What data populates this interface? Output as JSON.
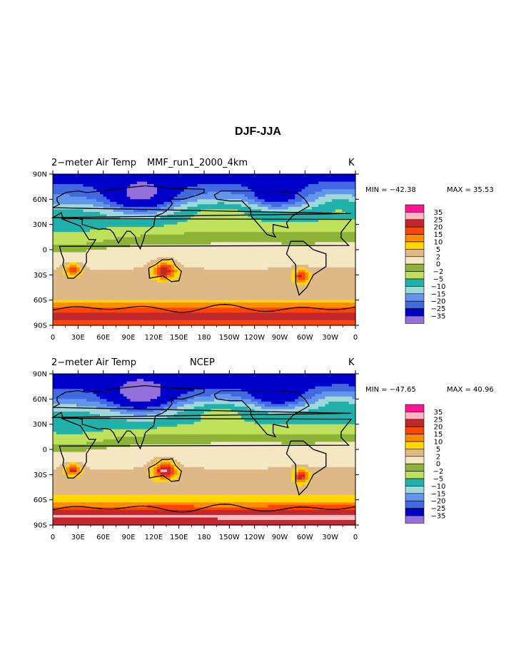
{
  "figure": {
    "title": "DJF-JJA"
  },
  "colorbar_levels": [
    35,
    25,
    20,
    15,
    10,
    5,
    2,
    0,
    -2,
    -5,
    -10,
    -15,
    -20,
    -25,
    -35
  ],
  "colorbar_labels": [
    "35",
    "25",
    "20",
    "15",
    "10",
    "5",
    "2",
    "0",
    "−2",
    "−5",
    "−10",
    "−15",
    "−20",
    "−25",
    "−35"
  ],
  "colorbar_colors": [
    "#FF1493",
    "#FFB6C1",
    "#C0282D",
    "#FF4500",
    "#FF8C00",
    "#FFD700",
    "#DEB887",
    "#F5E6C4",
    "#8FB339",
    "#BFE05A",
    "#20B2AA",
    "#9ED8DB",
    "#6495ED",
    "#4169E1",
    "#0000CD",
    "#9370DB"
  ],
  "panels": [
    {
      "left_label": "2−meter Air Temp",
      "center_label": "MMF_run1_2000_4km",
      "units": "K",
      "min_text": "MIN = −42.38",
      "max_text": "MAX =  35.53",
      "min": -42.38,
      "max": 35.53
    },
    {
      "left_label": "2−meter Air Temp",
      "center_label": "NCEP",
      "units": "K",
      "min_text": "MIN = −47.65",
      "max_text": "MAX =  40.96",
      "min": -47.65,
      "max": 40.96
    }
  ],
  "axes": {
    "x_ticks": [
      "0",
      "30E",
      "60E",
      "90E",
      "120E",
      "150E",
      "180",
      "150W",
      "120W",
      "90W",
      "60W",
      "30W",
      "0"
    ],
    "y_ticks": [
      "90N",
      "60N",
      "30N",
      "0",
      "30S",
      "60S",
      "90S"
    ]
  },
  "chart_data": [
    {
      "type": "heatmap",
      "title": "2−meter Air Temp  MMF_run1_2000_4km",
      "units": "K",
      "x_range": [
        0,
        360
      ],
      "y_range": [
        -90,
        90
      ],
      "min": -42.38,
      "max": 35.53,
      "zonal_profile": [
        [
          90,
          -28
        ],
        [
          75,
          -24
        ],
        [
          60,
          -18
        ],
        [
          45,
          -8
        ],
        [
          30,
          -4
        ],
        [
          15,
          -1
        ],
        [
          0,
          1
        ],
        [
          -15,
          1
        ],
        [
          -30,
          3
        ],
        [
          -45,
          3
        ],
        [
          -60,
          5
        ],
        [
          -70,
          18
        ],
        [
          -80,
          22
        ],
        [
          -90,
          15
        ]
      ]
    },
    {
      "type": "heatmap",
      "title": "2−meter Air Temp  NCEP",
      "units": "K",
      "x_range": [
        0,
        360
      ],
      "y_range": [
        -90,
        90
      ],
      "min": -47.65,
      "max": 40.96,
      "zonal_profile": [
        [
          90,
          -28
        ],
        [
          75,
          -26
        ],
        [
          60,
          -20
        ],
        [
          45,
          -9
        ],
        [
          30,
          -5
        ],
        [
          15,
          -1
        ],
        [
          0,
          1
        ],
        [
          -15,
          1
        ],
        [
          -30,
          3
        ],
        [
          -45,
          3
        ],
        [
          -60,
          6
        ],
        [
          -70,
          18
        ],
        [
          -80,
          26
        ],
        [
          -90,
          22
        ]
      ]
    }
  ]
}
